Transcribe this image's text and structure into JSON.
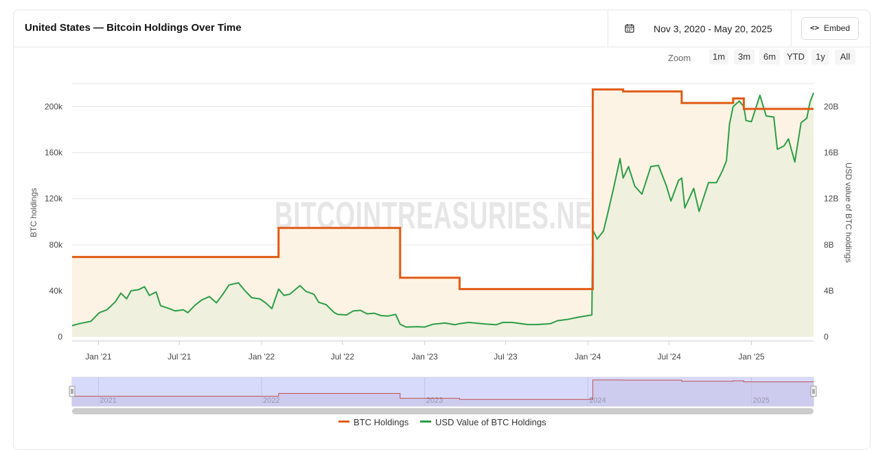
{
  "header": {
    "title": "United States — Bitcoin Holdings Over Time",
    "date_range": "Nov 3, 2020 - May 20, 2025",
    "embed_label": "Embed",
    "embed_icon": "code-icon",
    "calendar_icon": "calendar-icon"
  },
  "zoom": {
    "label": "Zoom",
    "options": [
      "1m",
      "3m",
      "6m",
      "YTD",
      "1y",
      "All"
    ]
  },
  "colors": {
    "btc": "#e05a14",
    "usd": "#2a9d45",
    "btc_fill": "#fdf3e4",
    "usd_fill": "#eff0de",
    "navigator_bg": "#d4d6fb",
    "navigator_line": "#c0504d"
  },
  "watermark": "BITCOINTREASURIES.NET",
  "legend": {
    "btc": "BTC Holdings",
    "usd": "USD Value of BTC Holdings"
  },
  "chart_data": {
    "type": "line",
    "xlabel": "",
    "ylabel_left": "BTC holdings",
    "ylabel_right": "USD value of BTC holdings",
    "x_range": [
      "2020-11-03",
      "2025-05-20"
    ],
    "x_ticks": [
      "Jan '21",
      "Jul '21",
      "Jan '22",
      "Jul '22",
      "Jan '23",
      "Jul '23",
      "Jan '24",
      "Jul '24",
      "Jan '25"
    ],
    "y_left_ticks": [
      "0",
      "40k",
      "80k",
      "120k",
      "160k",
      "200k"
    ],
    "y_left_range": [
      0,
      220000
    ],
    "y_right_ticks": [
      "0",
      "4B",
      "8B",
      "12B",
      "16B",
      "20B"
    ],
    "y_right_range": [
      0,
      22000000000
    ],
    "navigator_ticks": [
      "2021",
      "2022",
      "2023",
      "2024",
      "2025"
    ],
    "series": [
      {
        "name": "BTC Holdings",
        "axis": "left",
        "step": true,
        "points": [
          [
            "2020-11-03",
            69370
          ],
          [
            "2022-02-08",
            94643
          ],
          [
            "2022-11-07",
            51326
          ],
          [
            "2023-03-20",
            41490
          ],
          [
            "2024-01-12",
            215000
          ],
          [
            "2024-03-20",
            213300
          ],
          [
            "2024-07-29",
            203200
          ],
          [
            "2024-11-21",
            207200
          ],
          [
            "2024-12-15",
            198100
          ],
          [
            "2025-05-20",
            198100
          ]
        ]
      },
      {
        "name": "USD Value of BTC Holdings",
        "axis": "right",
        "step": false,
        "points": [
          [
            "2020-11-03",
            980000000.0
          ],
          [
            "2020-11-20",
            1150000000.0
          ],
          [
            "2020-12-15",
            1350000000.0
          ],
          [
            "2021-01-03",
            2100000000.0
          ],
          [
            "2021-01-20",
            2350000000.0
          ],
          [
            "2021-02-08",
            3050000000.0
          ],
          [
            "2021-02-20",
            3800000000.0
          ],
          [
            "2021-03-05",
            3300000000.0
          ],
          [
            "2021-03-15",
            4000000000.0
          ],
          [
            "2021-04-01",
            4100000000.0
          ],
          [
            "2021-04-14",
            4350000000.0
          ],
          [
            "2021-04-25",
            3600000000.0
          ],
          [
            "2021-05-10",
            3900000000.0
          ],
          [
            "2021-05-20",
            2700000000.0
          ],
          [
            "2021-06-05",
            2500000000.0
          ],
          [
            "2021-06-22",
            2250000000.0
          ],
          [
            "2021-07-10",
            2350000000.0
          ],
          [
            "2021-07-20",
            2100000000.0
          ],
          [
            "2021-08-05",
            2750000000.0
          ],
          [
            "2021-08-20",
            3200000000.0
          ],
          [
            "2021-09-06",
            3500000000.0
          ],
          [
            "2021-09-22",
            2950000000.0
          ],
          [
            "2021-10-08",
            3800000000.0
          ],
          [
            "2021-10-20",
            4500000000.0
          ],
          [
            "2021-11-10",
            4700000000.0
          ],
          [
            "2021-11-25",
            4000000000.0
          ],
          [
            "2021-12-10",
            3400000000.0
          ],
          [
            "2021-12-28",
            3300000000.0
          ],
          [
            "2022-01-10",
            2950000000.0
          ],
          [
            "2022-01-24",
            2450000000.0
          ],
          [
            "2022-02-08",
            4150000000.0
          ],
          [
            "2022-02-20",
            3600000000.0
          ],
          [
            "2022-03-05",
            3700000000.0
          ],
          [
            "2022-03-28",
            4450000000.0
          ],
          [
            "2022-04-10",
            3950000000.0
          ],
          [
            "2022-04-28",
            3700000000.0
          ],
          [
            "2022-05-09",
            3000000000.0
          ],
          [
            "2022-05-25",
            2800000000.0
          ],
          [
            "2022-06-13",
            2100000000.0
          ],
          [
            "2022-06-20",
            1950000000.0
          ],
          [
            "2022-07-10",
            1900000000.0
          ],
          [
            "2022-07-25",
            2250000000.0
          ],
          [
            "2022-08-10",
            2300000000.0
          ],
          [
            "2022-08-25",
            2000000000.0
          ],
          [
            "2022-09-10",
            2050000000.0
          ],
          [
            "2022-09-25",
            1850000000.0
          ],
          [
            "2022-10-10",
            1800000000.0
          ],
          [
            "2022-10-28",
            1950000000.0
          ],
          [
            "2022-11-07",
            1100000000.0
          ],
          [
            "2022-11-20",
            850000000.0
          ],
          [
            "2022-12-15",
            880000000.0
          ],
          [
            "2023-01-01",
            850000000.0
          ],
          [
            "2023-01-20",
            1100000000.0
          ],
          [
            "2023-02-15",
            1200000000.0
          ],
          [
            "2023-03-10",
            1050000000.0
          ],
          [
            "2023-03-20",
            1150000000.0
          ],
          [
            "2023-04-10",
            1250000000.0
          ],
          [
            "2023-05-15",
            1120000000.0
          ],
          [
            "2023-06-10",
            1050000000.0
          ],
          [
            "2023-06-25",
            1250000000.0
          ],
          [
            "2023-07-15",
            1250000000.0
          ],
          [
            "2023-08-20",
            1070000000.0
          ],
          [
            "2023-09-10",
            1070000000.0
          ],
          [
            "2023-10-10",
            1150000000.0
          ],
          [
            "2023-10-25",
            1400000000.0
          ],
          [
            "2023-11-15",
            1500000000.0
          ],
          [
            "2023-12-10",
            1700000000.0
          ],
          [
            "2024-01-10",
            1900000000.0
          ],
          [
            "2024-01-12",
            9300000000.0
          ],
          [
            "2024-01-22",
            8500000000.0
          ],
          [
            "2024-02-05",
            9200000000.0
          ],
          [
            "2024-02-15",
            10800000000.0
          ],
          [
            "2024-02-28",
            13000000000.0
          ],
          [
            "2024-03-13",
            15500000000.0
          ],
          [
            "2024-03-20",
            13800000000.0
          ],
          [
            "2024-04-01",
            14800000000.0
          ],
          [
            "2024-04-15",
            13100000000.0
          ],
          [
            "2024-05-01",
            12400000000.0
          ],
          [
            "2024-05-21",
            14800000000.0
          ],
          [
            "2024-06-07",
            14900000000.0
          ],
          [
            "2024-06-25",
            13100000000.0
          ],
          [
            "2024-07-05",
            11800000000.0
          ],
          [
            "2024-07-22",
            13600000000.0
          ],
          [
            "2024-07-29",
            13800000000.0
          ],
          [
            "2024-08-05",
            11200000000.0
          ],
          [
            "2024-08-25",
            12900000000.0
          ],
          [
            "2024-09-06",
            10900000000.0
          ],
          [
            "2024-09-27",
            13400000000.0
          ],
          [
            "2024-10-15",
            13400000000.0
          ],
          [
            "2024-10-29",
            14500000000.0
          ],
          [
            "2024-11-06",
            15300000000.0
          ],
          [
            "2024-11-13",
            18500000000.0
          ],
          [
            "2024-11-21",
            20000000000.0
          ],
          [
            "2024-12-05",
            20500000000.0
          ],
          [
            "2024-12-15",
            20000000000.0
          ],
          [
            "2024-12-20",
            18800000000.0
          ],
          [
            "2025-01-01",
            18700000000.0
          ],
          [
            "2025-01-20",
            21000000000.0
          ],
          [
            "2025-02-03",
            19200000000.0
          ],
          [
            "2025-02-20",
            19100000000.0
          ],
          [
            "2025-02-28",
            16300000000.0
          ],
          [
            "2025-03-15",
            16600000000.0
          ],
          [
            "2025-03-25",
            17200000000.0
          ],
          [
            "2025-04-08",
            15200000000.0
          ],
          [
            "2025-04-22",
            18600000000.0
          ],
          [
            "2025-05-05",
            19000000000.0
          ],
          [
            "2025-05-12",
            20400000000.0
          ],
          [
            "2025-05-20",
            21200000000.0
          ]
        ]
      }
    ],
    "legend_position": "bottom-center",
    "grid": true
  }
}
